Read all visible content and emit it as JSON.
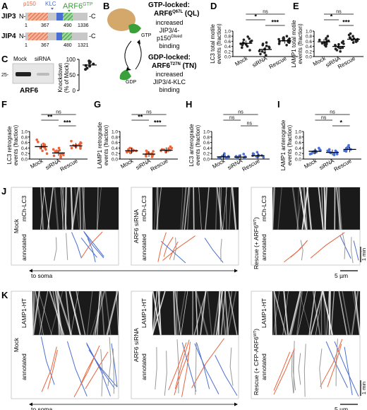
{
  "panel_letters": [
    "A",
    "B",
    "C",
    "D",
    "E",
    "F",
    "G",
    "H",
    "I",
    "J",
    "K"
  ],
  "panelA": {
    "row1": {
      "name": "JIP3",
      "nterm": "N-",
      "cterm": "-C",
      "nums": [
        "1",
        "367",
        "490",
        "1336"
      ]
    },
    "row2": {
      "name": "JIP4",
      "nterm": "N-",
      "cterm": "-C",
      "nums": [
        "1",
        "367",
        "480",
        "1321"
      ]
    },
    "legend": {
      "p150": "p150",
      "klc": "KLC",
      "arf6": "ARF6",
      "arf6_sup": "GTP"
    },
    "colors": {
      "p150": "#e8643c",
      "klc": "#4a6fd0",
      "arf6": "#3aa03a",
      "body": "#c8c8c8"
    }
  },
  "panelB": {
    "gtp": {
      "line1": "GTP-locked:",
      "line2a": "ARF6",
      "line2sup": "Q67L",
      "line2b": " (QL)",
      "desc1": "increased",
      "desc2": "JIP3/4-",
      "desc3a": "p150",
      "desc3sup": "Glued",
      "desc4": "binding",
      "tag": "GTP"
    },
    "gdp": {
      "line1": "GDP-locked:",
      "line2a": "ARF6",
      "line2sup": "T27N",
      "line2b": " (TN)",
      "desc1": "increased",
      "desc2": "JIP3/4-KLC",
      "desc3": "binding",
      "tag": "GDP"
    }
  },
  "panelC": {
    "blot_labels": [
      "Mock",
      "siRNA"
    ],
    "mw": "25-",
    "protein": "ARF6",
    "ylabel_line1": "Knockdown",
    "ylabel_line2": "(% of Mock)",
    "yticks": [
      "100",
      "50",
      "0"
    ],
    "points": [
      88,
      92,
      80,
      72,
      95,
      78,
      68,
      85
    ],
    "mean": 82
  },
  "scatter_panels": [
    {
      "id": "D",
      "ylabel": [
        "LC3 total motile",
        "events (fraction)"
      ],
      "yticks": [
        "0.0",
        "0.2",
        "0.4",
        "0.6",
        "0.8",
        "1.0"
      ],
      "color": "#222222",
      "groups": [
        "Mock",
        "siRNA",
        "Rescue"
      ],
      "means": [
        0.52,
        0.28,
        0.62
      ],
      "values": [
        [
          0.78,
          0.6,
          0.55,
          0.5,
          0.45,
          0.7,
          0.35,
          0.52,
          0.25,
          0.66,
          0.4,
          0.58,
          0.62,
          0.48
        ],
        [
          0.45,
          0.3,
          0.15,
          0.55,
          0.2,
          0.35,
          0.1,
          0.38,
          0.22,
          0.5,
          0.28,
          0.05,
          0.42
        ],
        [
          0.8,
          0.62,
          0.72,
          0.55,
          0.68,
          0.5,
          0.75,
          0.6,
          0.58,
          0.65,
          0.45,
          0.7,
          0.64,
          0.57
        ]
      ],
      "sig": [
        {
          "a": 0,
          "b": 2,
          "t": "ns",
          "lvl": 2
        },
        {
          "a": 0,
          "b": 1,
          "t": "*",
          "lvl": 1
        },
        {
          "a": 1,
          "b": 2,
          "t": "***",
          "lvl": 0
        }
      ]
    },
    {
      "id": "E",
      "ylabel": [
        "LAMP1 total motile",
        "events (fraction)"
      ],
      "yticks": [
        "0.0",
        "0.2",
        "0.4",
        "0.6",
        "0.8",
        "1.0"
      ],
      "color": "#222222",
      "groups": [
        "Mock",
        "siRNA",
        "Rescue"
      ],
      "means": [
        0.58,
        0.4,
        0.68
      ],
      "values": [
        [
          0.8,
          0.6,
          0.62,
          0.5,
          0.55,
          0.72,
          0.45,
          0.65,
          0.4,
          0.58,
          0.68,
          0.52,
          0.48
        ],
        [
          0.6,
          0.5,
          0.35,
          0.3,
          0.45,
          0.2,
          0.55,
          0.42,
          0.38,
          0.25,
          0.48,
          0.33
        ],
        [
          0.85,
          0.7,
          0.65,
          0.8,
          0.6,
          0.75,
          0.68,
          0.55,
          0.72,
          0.62,
          0.9,
          0.66,
          0.58
        ]
      ],
      "sig": [
        {
          "a": 0,
          "b": 2,
          "t": "ns",
          "lvl": 2
        },
        {
          "a": 0,
          "b": 1,
          "t": "*",
          "lvl": 1
        },
        {
          "a": 1,
          "b": 2,
          "t": "***",
          "lvl": 0
        }
      ]
    },
    {
      "id": "F",
      "ylabel": [
        "LC3 retrograde",
        "events (fraction)"
      ],
      "yticks": [
        "0.0",
        "0.2",
        "0.4",
        "0.6",
        "0.8",
        "1.0"
      ],
      "color": "#e8643c",
      "groups": [
        "Mock",
        "siRNA",
        "Rescue"
      ],
      "means": [
        0.45,
        0.22,
        0.48
      ],
      "values": [
        [
          0.7,
          0.5,
          0.45,
          0.4,
          0.35,
          0.55,
          0.2,
          0.48,
          0.3,
          0.62,
          0.42,
          0.52
        ],
        [
          0.4,
          0.25,
          0.1,
          0.3,
          0.15,
          0.05,
          0.35,
          0.2,
          0.28,
          0.12,
          0.32,
          0.18
        ],
        [
          0.6,
          0.5,
          0.45,
          0.55,
          0.4,
          0.65,
          0.48,
          0.52,
          0.38,
          0.58,
          0.44,
          0.5
        ]
      ],
      "sig": [
        {
          "a": 0,
          "b": 2,
          "t": "ns",
          "lvl": 2
        },
        {
          "a": 0,
          "b": 1,
          "t": "**",
          "lvl": 1
        },
        {
          "a": 1,
          "b": 2,
          "t": "***",
          "lvl": 0
        }
      ]
    },
    {
      "id": "G",
      "ylabel": [
        "LAMP1 retrograde",
        "events (fraction)"
      ],
      "yticks": [
        "0.0",
        "0.2",
        "0.4",
        "0.6",
        "0.8",
        "1.0"
      ],
      "color": "#e8643c",
      "groups": [
        "Mock",
        "siRNA",
        "Rescue"
      ],
      "means": [
        0.3,
        0.18,
        0.32
      ],
      "values": [
        [
          0.4,
          0.32,
          0.28,
          0.25,
          0.35,
          0.3,
          0.22,
          0.38,
          0.27,
          0.33,
          0.3
        ],
        [
          0.3,
          0.2,
          0.12,
          0.25,
          0.08,
          0.18,
          0.15,
          0.22,
          0.28,
          0.1,
          0.2,
          0.16
        ],
        [
          0.45,
          0.35,
          0.3,
          0.28,
          0.4,
          0.32,
          0.25,
          0.38,
          0.3,
          0.34,
          0.36
        ]
      ],
      "sig": [
        {
          "a": 0,
          "b": 2,
          "t": "ns",
          "lvl": 2
        },
        {
          "a": 0,
          "b": 1,
          "t": "**",
          "lvl": 1
        },
        {
          "a": 1,
          "b": 2,
          "t": "***",
          "lvl": 0
        }
      ]
    },
    {
      "id": "H",
      "ylabel": [
        "LC3 anterograde",
        "events (fraction)"
      ],
      "yticks": [
        "0.0",
        "0.2",
        "0.4",
        "0.6",
        "0.8",
        "1.0"
      ],
      "color": "#4a6fd0",
      "groups": [
        "Mock",
        "siRNA",
        "Rescue"
      ],
      "means": [
        0.08,
        0.07,
        0.12
      ],
      "values": [
        [
          0.2,
          0.15,
          0.1,
          0.05,
          0.08,
          0.12,
          0.02,
          0.06,
          0.1,
          0.04,
          0.07
        ],
        [
          0.18,
          0.1,
          0.05,
          0.08,
          0.02,
          0.12,
          0.06,
          0.04,
          0.09,
          0.07
        ],
        [
          0.25,
          0.18,
          0.12,
          0.1,
          0.15,
          0.08,
          0.2,
          0.1,
          0.13,
          0.06,
          0.11
        ]
      ],
      "sig": [
        {
          "a": 0,
          "b": 2,
          "t": "ns",
          "lvl": 2
        },
        {
          "a": 0,
          "b": 1,
          "t": "ns",
          "lvl": 1
        },
        {
          "a": 1,
          "b": 2,
          "t": "ns",
          "lvl": 0
        }
      ]
    },
    {
      "id": "I",
      "ylabel": [
        "LAMP1 anterograde",
        "events (fraction)"
      ],
      "yticks": [
        "0.0",
        "0.2",
        "0.4",
        "0.6",
        "0.8",
        "1.0"
      ],
      "color": "#4a6fd0",
      "groups": [
        "Mock",
        "siRNA",
        "Rescue"
      ],
      "means": [
        0.28,
        0.24,
        0.35
      ],
      "values": [
        [
          0.4,
          0.3,
          0.25,
          0.22,
          0.35,
          0.28,
          0.2,
          0.32,
          0.26,
          0.3,
          0.18
        ],
        [
          0.35,
          0.25,
          0.2,
          0.3,
          0.15,
          0.28,
          0.22,
          0.26,
          0.18,
          0.24,
          0.3
        ],
        [
          0.5,
          0.4,
          0.35,
          0.3,
          0.45,
          0.32,
          0.38,
          0.28,
          0.36,
          0.42,
          0.33
        ]
      ],
      "sig": [
        {
          "a": 0,
          "b": 2,
          "t": "ns",
          "lvl": 2
        },
        {
          "a": 0,
          "b": 1,
          "t": "ns",
          "lvl": 1
        },
        {
          "a": 1,
          "b": 2,
          "t": "*",
          "lvl": 0
        }
      ]
    }
  ],
  "panelJ": {
    "panels": [
      {
        "side": "Mock",
        "marker": "mCh-LC3",
        "annot": "annotated"
      },
      {
        "side": "ARF6 siRNA",
        "marker": "mCh-LC3",
        "annot": "annotated"
      },
      {
        "side": "Rescue (+ ARF6",
        "side_sup": "WT",
        "side_end": ")",
        "marker": "mCh-LC3",
        "annot": "annotated"
      }
    ],
    "to_soma": "to soma",
    "scale_time": "1 min",
    "scale_space": "5 µm"
  },
  "panelK": {
    "panels": [
      {
        "side": "Mock",
        "marker": "LAMP1-HT",
        "annot": "annotated"
      },
      {
        "side": "ARF6 siRNA",
        "marker": "LAMP1-HT",
        "annot": "annotated"
      },
      {
        "side": "Rescue (+ CFP-ARF6",
        "side_sup": "WT",
        "side_end": ")",
        "marker": "LAMP1-HT",
        "annot": "annotated"
      }
    ],
    "to_soma": "to soma",
    "scale_time": "1 min",
    "scale_space": "5 µm"
  },
  "colors": {
    "retro": "#e8643c",
    "antero": "#4a6fd0",
    "stationary": "#999999",
    "kymo_bg": "#1a1a1a"
  }
}
